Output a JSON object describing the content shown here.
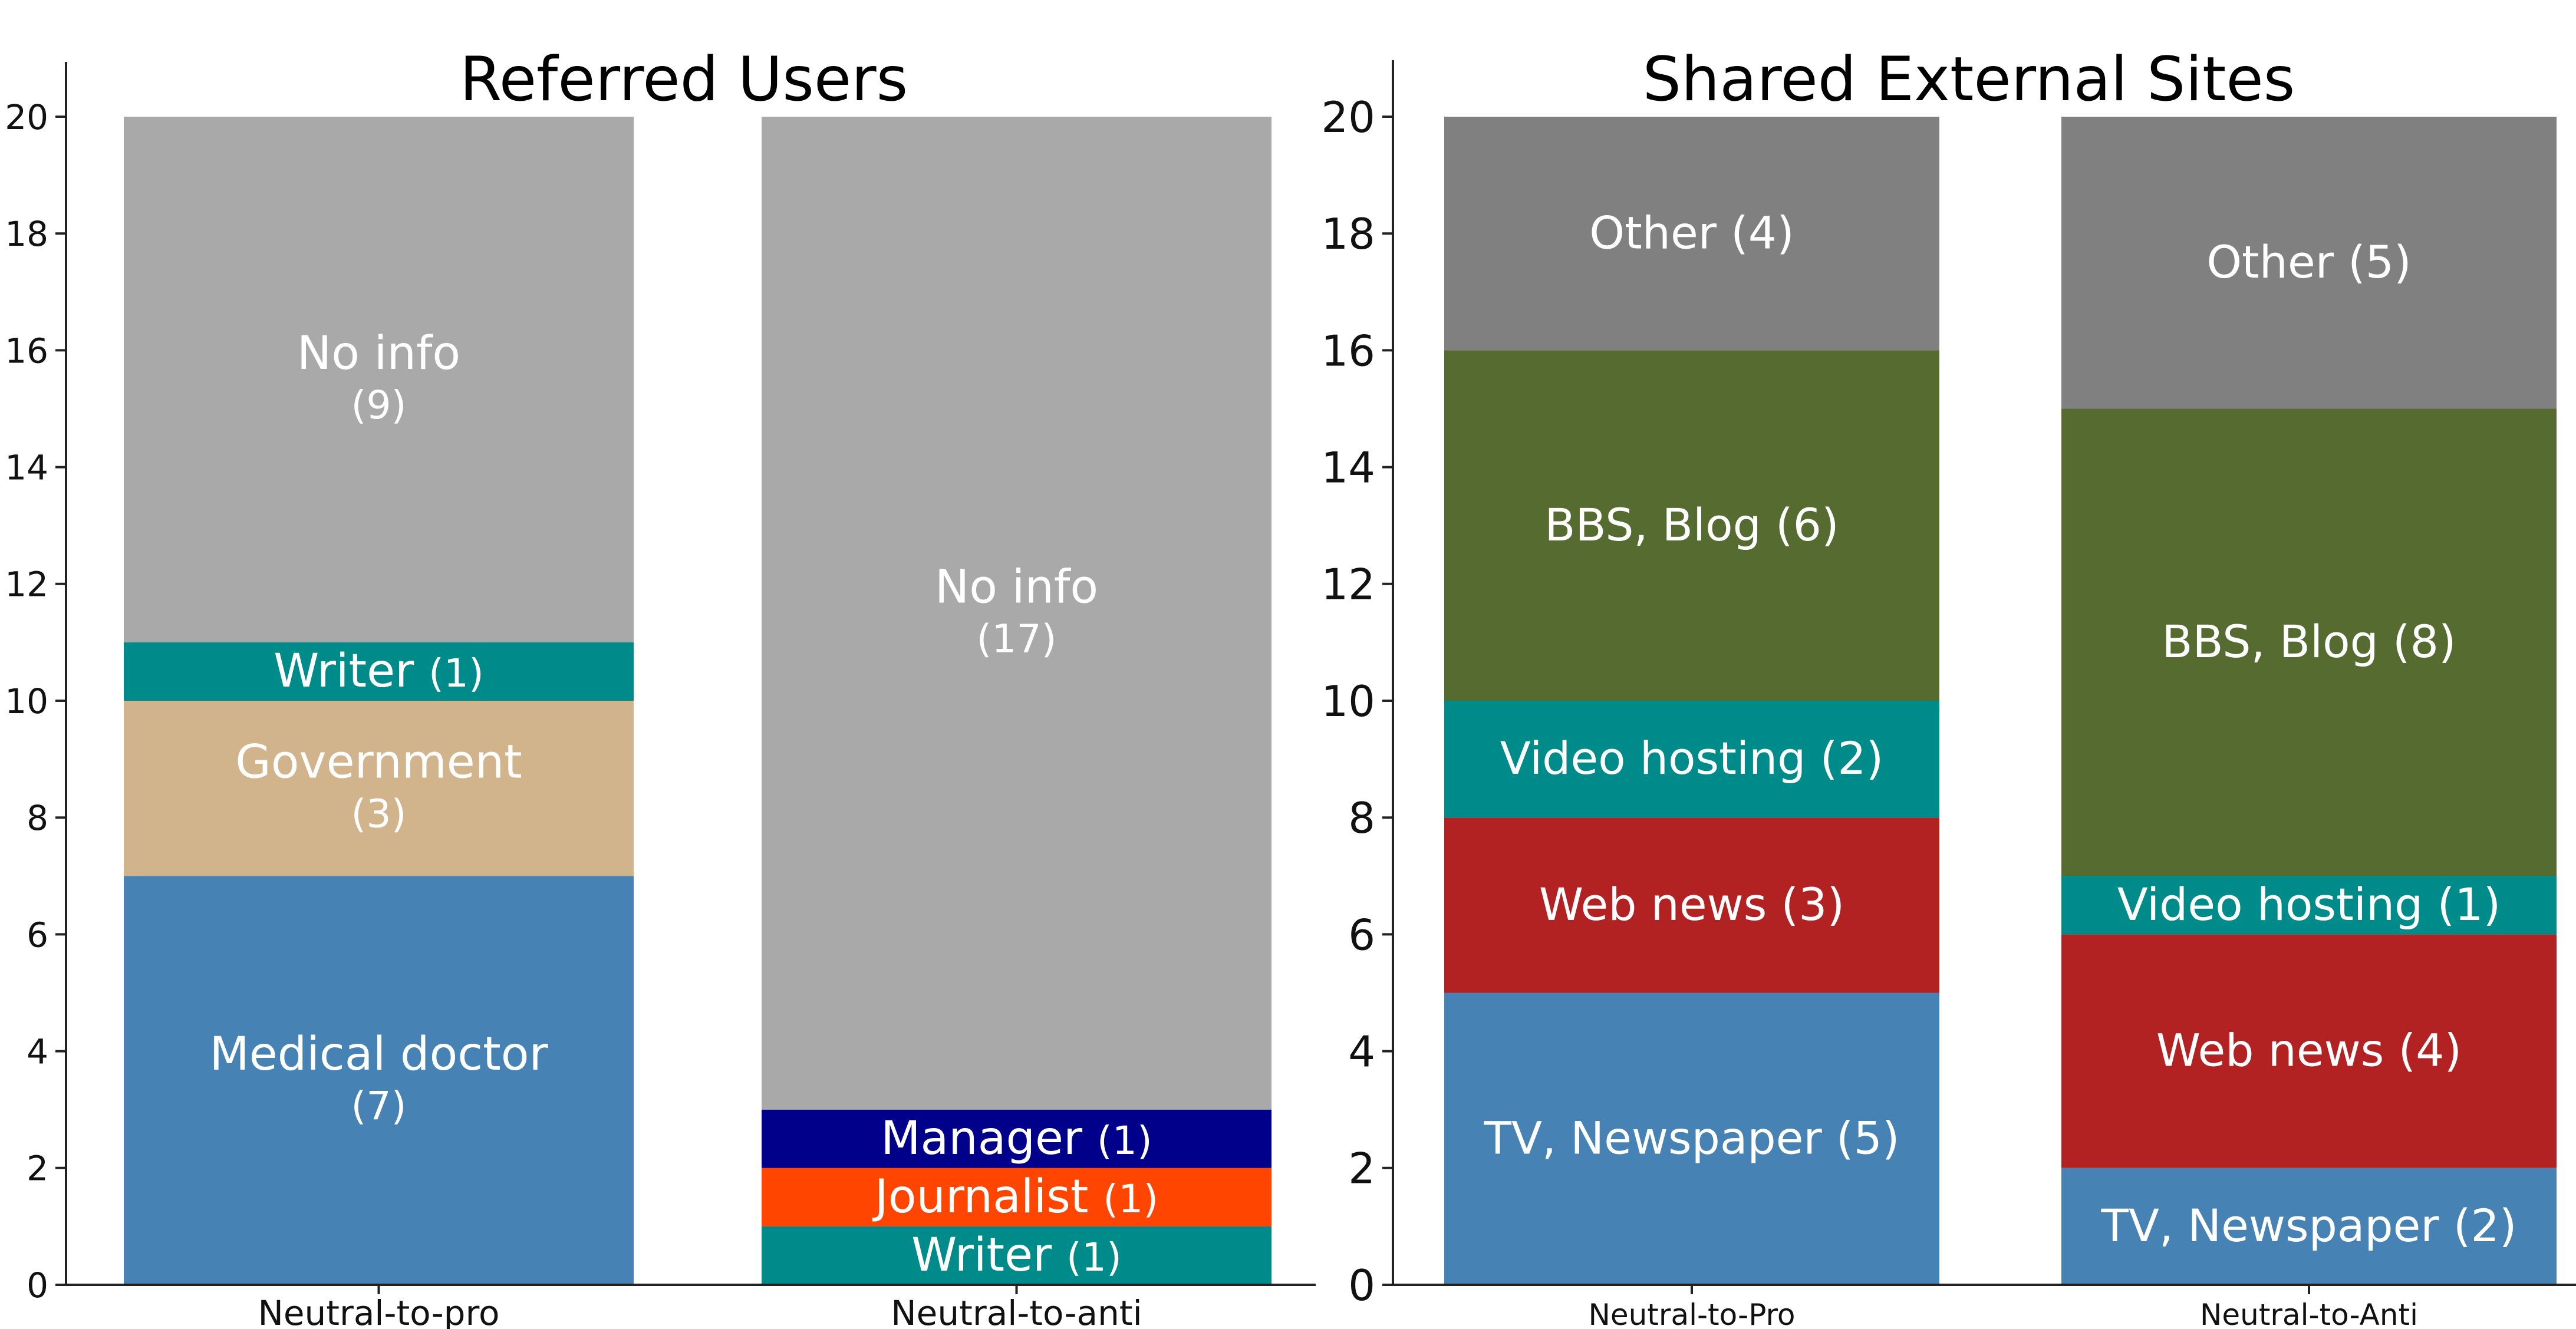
{
  "chart_data": [
    {
      "type": "bar",
      "stacked": true,
      "title": "Referred Users",
      "categories": [
        "Neutral-to-pro",
        "Neutral-to-anti"
      ],
      "ylim": [
        0,
        20
      ],
      "yticks": [
        0,
        2,
        4,
        6,
        8,
        10,
        12,
        14,
        16,
        18,
        20
      ],
      "grid": false,
      "bars": [
        {
          "category": "Neutral-to-pro",
          "segments": [
            {
              "label": "Medical doctor",
              "count_label": "(7)",
              "value": 7,
              "color": "#4682B4",
              "layout": "two-line"
            },
            {
              "label": "Government",
              "count_label": "(3)",
              "value": 3,
              "color": "#D2B48C",
              "layout": "two-line"
            },
            {
              "label": "Writer",
              "count_label": "(1)",
              "value": 1,
              "color": "#008B8B",
              "layout": "one-line"
            },
            {
              "label": "No info",
              "count_label": "(9)",
              "value": 9,
              "color": "#A9A9A9",
              "layout": "two-line"
            }
          ]
        },
        {
          "category": "Neutral-to-anti",
          "segments": [
            {
              "label": "Writer",
              "count_label": "(1)",
              "value": 1,
              "color": "#008B8B",
              "layout": "one-line"
            },
            {
              "label": "Journalist",
              "count_label": "(1)",
              "value": 1,
              "color": "#FF4500",
              "layout": "one-line"
            },
            {
              "label": "Manager",
              "count_label": "(1)",
              "value": 1,
              "color": "#00008B",
              "layout": "one-line"
            },
            {
              "label": "No info",
              "count_label": "(17)",
              "value": 17,
              "color": "#A9A9A9",
              "layout": "two-line"
            }
          ]
        }
      ]
    },
    {
      "type": "bar",
      "stacked": true,
      "title": "Shared External Sites",
      "categories": [
        "Neutral-to-Pro",
        "Neutral-to-Anti"
      ],
      "ylim": [
        0,
        20
      ],
      "yticks": [
        0,
        2,
        4,
        6,
        8,
        10,
        12,
        14,
        16,
        18,
        20
      ],
      "grid": false,
      "bars": [
        {
          "category": "Neutral-to-Pro",
          "segments": [
            {
              "label": "TV, Newspaper (5)",
              "value": 5,
              "color": "#4682B4"
            },
            {
              "label": "Web news (3)",
              "value": 3,
              "color": "#B22222"
            },
            {
              "label": "Video hosting (2)",
              "value": 2,
              "color": "#008B8B"
            },
            {
              "label": "BBS, Blog (6)",
              "value": 6,
              "color": "#556B2F"
            },
            {
              "label": "Other (4)",
              "value": 4,
              "color": "#808080"
            }
          ]
        },
        {
          "category": "Neutral-to-Anti",
          "segments": [
            {
              "label": "TV, Newspaper (2)",
              "value": 2,
              "color": "#4682B4"
            },
            {
              "label": "Web news (4)",
              "value": 4,
              "color": "#B22222"
            },
            {
              "label": "Video hosting (1)",
              "value": 1,
              "color": "#008B8B"
            },
            {
              "label": "BBS, Blog (8)",
              "value": 8,
              "color": "#556B2F"
            },
            {
              "label": "Other (5)",
              "value": 5,
              "color": "#808080"
            }
          ]
        }
      ]
    }
  ]
}
